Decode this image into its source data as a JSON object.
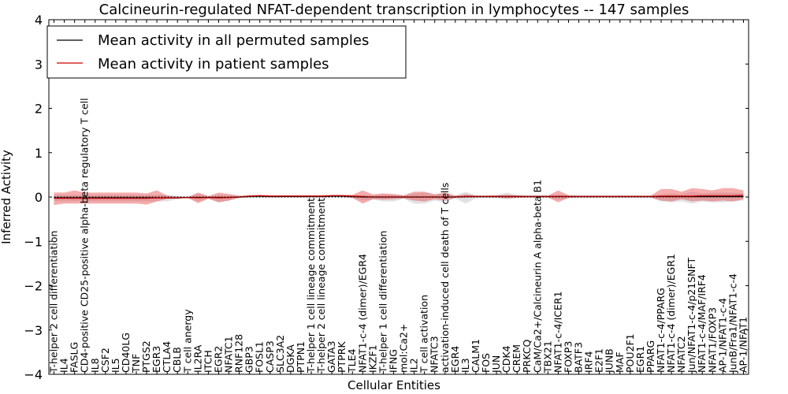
{
  "chart_data": {
    "type": "line",
    "title": "Calcineurin-regulated NFAT-dependent transcription in lymphocytes -- 147 samples",
    "xlabel": "Cellular Entities",
    "ylabel": "Inferred Activity",
    "ylim": [
      -4,
      4
    ],
    "yticks": [
      -4,
      -3,
      -2,
      -1,
      0,
      1,
      2,
      3,
      4
    ],
    "grid": false,
    "legend_position": "upper-left",
    "categories": [
      "T-helper 2 cell differentiation",
      "IL4",
      "FASLG",
      "CD4-positive CD25-positive alpha-beta regulatory T cell",
      "IL8",
      "CSF2",
      "IL5",
      "CD40LG",
      "TNF",
      "PTGS2",
      "EGR3",
      "CTLA4",
      "CBLB",
      "T cell anergy",
      "IL2RA",
      "ITCH",
      "EGR2",
      "NFATC1",
      "RNF128",
      "GBP3",
      "FOSL1",
      "CASP3",
      "SLC3A2",
      "DGKA",
      "PTPN1",
      "T-helper 1 cell lineage commitment",
      "T-helper 2 cell lineage commitment",
      "GATA3",
      "PTPRK",
      "TLE4",
      "NFAT1-c-4 (dimer)/EGR4",
      "IKZF1",
      "T-helper 1 cell differentiation",
      "IFNG",
      "mol:Ca2+",
      "IL2",
      "T cell activation",
      "NFATC3",
      "activation-induced cell death of T cells",
      "EGR4",
      "IL3",
      "CALM1",
      "FOS",
      "JUN",
      "CDK4",
      "CREM",
      "PRKCQ",
      "CaM/Ca2+/Calcineurin A alpha-beta B1",
      "TBX21",
      "NFAT1-c-4/ICER1",
      "FOXP3",
      "BATF3",
      "IRF4",
      "E2F1",
      "JUNB",
      "MAF",
      "POU2F1",
      "EGR1",
      "PPARG",
      "NFAT1-c-4/PPARG",
      "NFAT1-c-4 (dimer)/EGR1",
      "NFATC2",
      "Jun/NFAT1-c-4/p21SNFT",
      "NFAT1-c-4/MAF/IRF4",
      "NFAT1/FOXP3",
      "AP-1/NFAT1-c-4",
      "JunB/Fra1/NFAT1-c-4",
      "AP-1/NFAT1"
    ],
    "series": [
      {
        "name": "Mean activity in all permuted samples",
        "color": "#000000",
        "values": [
          -0.02,
          -0.02,
          -0.02,
          -0.02,
          -0.02,
          -0.02,
          -0.02,
          -0.02,
          -0.02,
          -0.02,
          -0.02,
          -0.02,
          -0.02,
          -0.01,
          -0.01,
          -0.01,
          -0.01,
          -0.01,
          0.0,
          0.01,
          0.02,
          0.01,
          0.01,
          0.01,
          0.01,
          0.01,
          0.01,
          0.02,
          0.02,
          0.01,
          0.0,
          0.0,
          0.0,
          0.0,
          0.0,
          0.0,
          0.0,
          0.0,
          0.0,
          0.0,
          0.01,
          0.01,
          0.01,
          0.01,
          0.01,
          0.01,
          0.01,
          0.01,
          0.01,
          0.01,
          0.01,
          0.01,
          0.01,
          0.01,
          0.01,
          0.01,
          0.01,
          0.01,
          0.01,
          0.01,
          0.01,
          0.01,
          0.01,
          0.01,
          0.01,
          0.01,
          0.01,
          0.01
        ],
        "band_low": [
          -0.1,
          -0.1,
          -0.1,
          -0.1,
          -0.1,
          -0.1,
          -0.1,
          -0.1,
          -0.1,
          -0.1,
          -0.1,
          -0.1,
          -0.05,
          -0.02,
          -0.1,
          -0.03,
          -0.12,
          -0.08,
          -0.02,
          -0.01,
          0.0,
          -0.01,
          -0.01,
          -0.01,
          -0.01,
          -0.01,
          -0.01,
          0.0,
          0.0,
          -0.02,
          -0.08,
          -0.06,
          -0.1,
          -0.1,
          -0.04,
          -0.15,
          -0.15,
          -0.08,
          -0.12,
          -0.03,
          -0.15,
          -0.03,
          -0.02,
          -0.03,
          -0.05,
          -0.02,
          -0.02,
          -0.02,
          -0.02,
          -0.06,
          -0.03,
          -0.02,
          -0.02,
          -0.02,
          -0.02,
          -0.02,
          -0.02,
          -0.02,
          -0.02,
          -0.1,
          -0.12,
          -0.1,
          -0.15,
          -0.1,
          -0.12,
          -0.12,
          -0.1,
          -0.08
        ],
        "band_high": [
          0.05,
          0.05,
          0.05,
          0.05,
          0.05,
          0.05,
          0.05,
          0.05,
          0.05,
          0.05,
          0.05,
          0.05,
          0.03,
          0.0,
          0.08,
          0.02,
          0.05,
          0.04,
          0.01,
          0.03,
          0.04,
          0.02,
          0.02,
          0.02,
          0.02,
          0.02,
          0.02,
          0.04,
          0.04,
          0.03,
          0.05,
          0.04,
          0.06,
          0.05,
          0.03,
          0.08,
          0.1,
          0.06,
          0.09,
          0.03,
          0.12,
          0.03,
          0.03,
          0.04,
          0.1,
          0.04,
          0.02,
          0.03,
          0.03,
          0.06,
          0.03,
          0.02,
          0.02,
          0.02,
          0.02,
          0.02,
          0.02,
          0.02,
          0.02,
          0.06,
          0.08,
          0.06,
          0.12,
          0.08,
          0.1,
          0.1,
          0.1,
          0.08
        ]
      },
      {
        "name": "Mean activity in patient samples",
        "color": "#cc0000",
        "values": [
          -0.03,
          -0.03,
          -0.03,
          -0.03,
          -0.03,
          -0.03,
          -0.03,
          -0.03,
          -0.03,
          -0.03,
          -0.02,
          -0.02,
          -0.02,
          -0.01,
          -0.02,
          -0.01,
          -0.02,
          -0.01,
          0.0,
          0.02,
          0.03,
          0.02,
          0.02,
          0.02,
          0.02,
          0.02,
          0.02,
          0.03,
          0.03,
          0.02,
          0.01,
          0.0,
          0.0,
          0.0,
          0.0,
          0.0,
          0.0,
          0.0,
          0.0,
          0.0,
          0.01,
          0.01,
          0.01,
          0.01,
          0.01,
          0.01,
          0.01,
          0.01,
          0.01,
          0.01,
          0.01,
          0.01,
          0.01,
          0.01,
          0.01,
          0.01,
          0.01,
          0.01,
          0.01,
          0.02,
          0.02,
          0.02,
          0.02,
          0.03,
          0.03,
          0.03,
          0.03,
          0.04
        ],
        "band_low": [
          -0.18,
          -0.15,
          -0.15,
          -0.15,
          -0.15,
          -0.15,
          -0.15,
          -0.15,
          -0.15,
          -0.17,
          -0.1,
          -0.04,
          -0.03,
          -0.02,
          -0.14,
          -0.04,
          -0.12,
          -0.08,
          -0.02,
          0.0,
          0.01,
          0.0,
          0.0,
          0.0,
          0.0,
          0.0,
          0.0,
          0.01,
          0.01,
          -0.02,
          -0.15,
          -0.05,
          -0.06,
          -0.05,
          -0.03,
          -0.08,
          -0.1,
          -0.05,
          -0.08,
          -0.02,
          -0.02,
          -0.01,
          -0.01,
          -0.01,
          -0.03,
          -0.02,
          -0.01,
          -0.01,
          -0.01,
          -0.12,
          -0.02,
          -0.01,
          -0.01,
          -0.01,
          -0.01,
          -0.01,
          -0.01,
          -0.01,
          -0.01,
          -0.08,
          -0.1,
          -0.05,
          -0.1,
          -0.08,
          -0.1,
          -0.08,
          -0.1,
          -0.05
        ],
        "band_high": [
          0.1,
          0.1,
          0.15,
          0.1,
          0.1,
          0.1,
          0.1,
          0.1,
          0.1,
          0.08,
          0.15,
          0.03,
          0.0,
          0.0,
          0.1,
          0.02,
          0.1,
          0.07,
          0.03,
          0.04,
          0.05,
          0.04,
          0.04,
          0.04,
          0.04,
          0.04,
          0.04,
          0.05,
          0.05,
          0.05,
          0.15,
          0.06,
          0.08,
          0.07,
          0.04,
          0.12,
          0.12,
          0.06,
          0.1,
          0.03,
          0.06,
          0.03,
          0.03,
          0.04,
          0.05,
          0.04,
          0.03,
          0.03,
          0.03,
          0.15,
          0.04,
          0.03,
          0.03,
          0.03,
          0.03,
          0.03,
          0.03,
          0.03,
          0.03,
          0.18,
          0.18,
          0.12,
          0.2,
          0.18,
          0.15,
          0.2,
          0.2,
          0.15
        ]
      }
    ]
  }
}
